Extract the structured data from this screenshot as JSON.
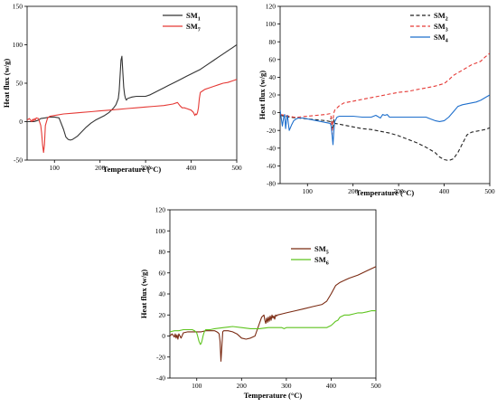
{
  "chart_data": [
    {
      "type": "line",
      "xlabel": "Temperature (°C)",
      "ylabel": "Heat flux (w/g)",
      "xlim": [
        40,
        500
      ],
      "ylim": [
        -50,
        150
      ],
      "xticks": [
        100,
        200,
        300,
        400,
        500
      ],
      "yticks": [
        -50,
        0,
        50,
        100,
        150
      ],
      "legend_position": "top-right",
      "series": [
        {
          "name": "SM1",
          "legend_base": "SM",
          "legend_sub": "1",
          "color": "#333333",
          "style": "solid",
          "x": [
            40,
            55,
            60,
            65,
            70,
            80,
            90,
            100,
            110,
            120,
            125,
            130,
            135,
            140,
            150,
            160,
            170,
            180,
            190,
            200,
            210,
            220,
            230,
            235,
            240,
            242,
            244,
            246,
            248,
            250,
            252,
            254,
            256,
            258,
            260,
            265,
            270,
            280,
            290,
            300,
            310,
            320,
            330,
            340,
            350,
            360,
            370,
            380,
            390,
            400,
            410,
            420,
            430,
            440,
            450,
            460,
            470,
            480,
            490,
            500
          ],
          "y": [
            0,
            0,
            1,
            2,
            4,
            5,
            6,
            6,
            5,
            -10,
            -20,
            -23,
            -24,
            -23,
            -19,
            -13,
            -7,
            -2,
            2,
            5,
            8,
            12,
            18,
            22,
            30,
            40,
            60,
            80,
            85,
            65,
            45,
            35,
            30,
            28,
            30,
            31,
            32,
            33,
            33,
            33,
            35,
            38,
            41,
            44,
            47,
            50,
            53,
            56,
            59,
            62,
            65,
            68,
            72,
            76,
            80,
            84,
            88,
            92,
            96,
            100
          ]
        },
        {
          "name": "SM7",
          "legend_base": "SM",
          "legend_sub": "7",
          "color": "#e53935",
          "style": "solid",
          "x": [
            40,
            45,
            50,
            52,
            54,
            56,
            58,
            60,
            65,
            70,
            72,
            74,
            76,
            78,
            80,
            85,
            90,
            100,
            120,
            140,
            160,
            180,
            200,
            220,
            240,
            260,
            280,
            300,
            320,
            340,
            360,
            370,
            375,
            380,
            385,
            390,
            400,
            405,
            408,
            410,
            412,
            414,
            416,
            418,
            420,
            425,
            430,
            440,
            450,
            460,
            470,
            480,
            490,
            500
          ],
          "y": [
            2,
            4,
            0,
            3,
            1,
            4,
            2,
            5,
            4,
            -5,
            -15,
            -30,
            -40,
            -30,
            -5,
            5,
            7,
            8,
            10,
            11,
            12,
            13,
            14,
            15,
            16,
            17,
            18,
            19,
            20,
            21,
            23,
            25,
            21,
            18,
            18,
            17,
            15,
            12,
            8,
            10,
            9,
            12,
            18,
            30,
            38,
            40,
            42,
            44,
            46,
            48,
            50,
            51,
            53,
            55
          ]
        }
      ]
    },
    {
      "type": "line",
      "xlabel": "Temperature (°C)",
      "ylabel": "Heat flux (w/g)",
      "xlim": [
        40,
        500
      ],
      "ylim": [
        -80,
        120
      ],
      "xticks": [
        100,
        200,
        300,
        400,
        500
      ],
      "yticks": [
        -80,
        -60,
        -40,
        -20,
        0,
        20,
        40,
        60,
        80,
        100,
        120
      ],
      "legend_position": "top-right",
      "series": [
        {
          "name": "SM2",
          "legend_base": "SM",
          "legend_sub": "2",
          "color": "#222222",
          "style": "dashed",
          "x": [
            40,
            50,
            60,
            80,
            100,
            120,
            140,
            150,
            152,
            155,
            158,
            160,
            170,
            180,
            200,
            220,
            240,
            260,
            280,
            300,
            320,
            340,
            360,
            380,
            390,
            400,
            410,
            420,
            430,
            440,
            450,
            460,
            470,
            480,
            490,
            500
          ],
          "y": [
            -3,
            -4,
            -5,
            -6,
            -7,
            -8,
            -9,
            -10,
            -5,
            -20,
            -8,
            -12,
            -13,
            -14,
            -16,
            -18,
            -19,
            -21,
            -23,
            -26,
            -30,
            -34,
            -39,
            -45,
            -50,
            -53,
            -54,
            -52,
            -45,
            -35,
            -25,
            -22,
            -21,
            -20,
            -19,
            -17
          ]
        },
        {
          "name": "SM3",
          "legend_base": "SM",
          "legend_sub": "3",
          "color": "#e53935",
          "style": "dashed",
          "x": [
            40,
            50,
            60,
            70,
            80,
            100,
            120,
            140,
            150,
            152,
            154,
            156,
            158,
            160,
            170,
            180,
            200,
            220,
            240,
            260,
            280,
            300,
            320,
            340,
            360,
            380,
            400,
            410,
            420,
            440,
            460,
            480,
            490,
            500
          ],
          "y": [
            -2,
            -3,
            -4,
            -5,
            -5,
            -4,
            -3,
            -2,
            -1,
            -5,
            -25,
            -8,
            0,
            3,
            8,
            11,
            13,
            15,
            17,
            19,
            21,
            23,
            24,
            26,
            28,
            30,
            33,
            37,
            42,
            48,
            54,
            58,
            63,
            67
          ]
        },
        {
          "name": "SM4",
          "legend_base": "SM",
          "legend_sub": "4",
          "color": "#1e6fcc",
          "style": "solid",
          "x": [
            40,
            45,
            48,
            50,
            52,
            54,
            56,
            58,
            60,
            65,
            70,
            75,
            80,
            90,
            100,
            110,
            120,
            130,
            140,
            150,
            152,
            154,
            156,
            158,
            160,
            165,
            170,
            180,
            200,
            220,
            240,
            250,
            260,
            265,
            270,
            275,
            280,
            300,
            320,
            340,
            360,
            370,
            380,
            390,
            400,
            410,
            420,
            430,
            440,
            450,
            460,
            470,
            480,
            490,
            500
          ],
          "y": [
            3,
            -15,
            -5,
            -2,
            -18,
            -8,
            -3,
            -12,
            -20,
            -14,
            -9,
            -7,
            -6,
            -6,
            -7,
            -8,
            -9,
            -10,
            -11,
            -12,
            -15,
            -25,
            -36,
            -20,
            -10,
            -5,
            -4,
            -4,
            -4,
            -5,
            -5,
            -3,
            -6,
            -2,
            -3,
            -2,
            -5,
            -5,
            -5,
            -5,
            -5,
            -7,
            -9,
            -10,
            -9,
            -5,
            1,
            7,
            9,
            10,
            11,
            12,
            14,
            17,
            20
          ]
        }
      ]
    },
    {
      "type": "line",
      "xlabel": "Temperature (°C)",
      "ylabel": "Heat flux (w/g)",
      "xlim": [
        40,
        500
      ],
      "ylim": [
        -40,
        120
      ],
      "xticks": [
        100,
        200,
        300,
        400,
        500
      ],
      "yticks": [
        -40,
        -20,
        0,
        20,
        40,
        60,
        80,
        100,
        120
      ],
      "legend_position": "top-right",
      "series": [
        {
          "name": "SM5",
          "legend_base": "SM",
          "legend_sub": "5",
          "color": "#7a2a12",
          "style": "solid",
          "x": [
            40,
            45,
            50,
            52,
            54,
            56,
            58,
            60,
            65,
            70,
            80,
            90,
            100,
            110,
            120,
            130,
            140,
            145,
            148,
            150,
            152,
            154,
            156,
            158,
            160,
            170,
            180,
            190,
            200,
            210,
            220,
            230,
            240,
            245,
            250,
            252,
            254,
            256,
            258,
            260,
            262,
            264,
            266,
            268,
            270,
            272,
            274,
            276,
            278,
            280,
            290,
            300,
            320,
            340,
            360,
            380,
            390,
            400,
            410,
            420,
            440,
            460,
            480,
            500
          ],
          "y": [
            0,
            2,
            -1,
            2,
            -2,
            1,
            -3,
            2,
            -2,
            3,
            4,
            4,
            4,
            4,
            5,
            5,
            5,
            4,
            3,
            2,
            -5,
            -24,
            -10,
            4,
            5,
            5,
            4,
            2,
            -2,
            -3,
            -2,
            0,
            12,
            18,
            20,
            15,
            12,
            17,
            13,
            18,
            14,
            19,
            15,
            20,
            17,
            19,
            16,
            20,
            19,
            20,
            21,
            22,
            24,
            26,
            28,
            30,
            33,
            40,
            48,
            51,
            55,
            58,
            62,
            66
          ]
        },
        {
          "name": "SM6",
          "legend_base": "SM",
          "legend_sub": "6",
          "color": "#5ec41e",
          "style": "solid",
          "x": [
            40,
            50,
            60,
            70,
            80,
            90,
            95,
            100,
            102,
            105,
            108,
            110,
            112,
            114,
            116,
            118,
            120,
            130,
            140,
            160,
            180,
            200,
            220,
            240,
            260,
            280,
            290,
            295,
            300,
            310,
            320,
            340,
            360,
            380,
            390,
            395,
            400,
            405,
            410,
            415,
            420,
            430,
            440,
            450,
            460,
            470,
            480,
            490,
            500
          ],
          "y": [
            4,
            5,
            5,
            6,
            6,
            6,
            5,
            3,
            0,
            -5,
            -8,
            -7,
            -4,
            0,
            3,
            5,
            6,
            6,
            7,
            8,
            9,
            8,
            7,
            7,
            8,
            8,
            8,
            7,
            8,
            8,
            8,
            8,
            8,
            8,
            8,
            9,
            10,
            12,
            14,
            15,
            18,
            20,
            20,
            21,
            22,
            22,
            23,
            24,
            24
          ]
        }
      ]
    }
  ]
}
